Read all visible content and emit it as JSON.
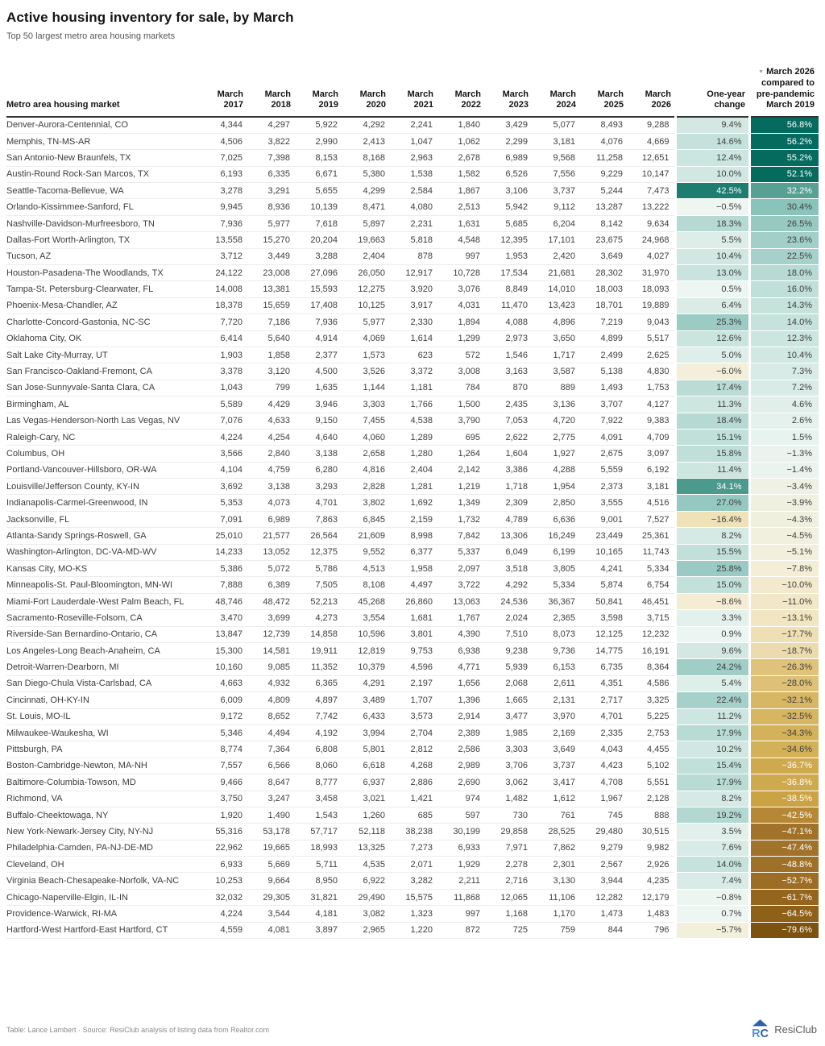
{
  "title": "Active housing inventory for sale, by March",
  "subtitle": "Top 50 largest metro area housing markets",
  "header": {
    "sort_icon": "▼"
  },
  "footer": {
    "credit": "Table: Lance Lambert · Source: ResiClub analysis of listing data from Realtor.com",
    "brand": "ResiClub"
  },
  "colors": {
    "accent_teal_dark": "#066b5f",
    "accent_brown_dark": "#7d5210",
    "light_text": "#ffffff",
    "dark_text": "#3f3f3f",
    "white_text_pos_min": 32,
    "white_text_neg_max": -36,
    "scale_stops": [
      [
        -79.6,
        "#7d5210"
      ],
      [
        -64.5,
        "#8f6118"
      ],
      [
        -61.7,
        "#93651d"
      ],
      [
        -52.7,
        "#9c6e25"
      ],
      [
        -47.1,
        "#a0722a"
      ],
      [
        -42.5,
        "#b68836"
      ],
      [
        -38.5,
        "#cba345"
      ],
      [
        -36.7,
        "#cfa94d"
      ],
      [
        -34.6,
        "#d3b158"
      ],
      [
        -32.5,
        "#d7b662"
      ],
      [
        -28,
        "#dec077"
      ],
      [
        -26.3,
        "#e0c27a"
      ],
      [
        -18.7,
        "#ecdbae"
      ],
      [
        -17.7,
        "#eedfb4"
      ],
      [
        -13.1,
        "#f1e5c2"
      ],
      [
        -11,
        "#f2e7c8"
      ],
      [
        -7.8,
        "#f4eed6"
      ],
      [
        -5.1,
        "#f2f0dc"
      ],
      [
        -3.9,
        "#eff0e0"
      ],
      [
        -1.3,
        "#eaf3ee"
      ],
      [
        0,
        "#f2f8f5"
      ],
      [
        1.5,
        "#e7f3ee"
      ],
      [
        7.3,
        "#d9ebe6"
      ],
      [
        12.3,
        "#cbe5df"
      ],
      [
        16,
        "#bfdfd8"
      ],
      [
        22.5,
        "#a6d1ca"
      ],
      [
        26.5,
        "#97c9c1"
      ],
      [
        30.4,
        "#8ac3ba"
      ],
      [
        32.2,
        "#57a093"
      ],
      [
        42.5,
        "#1d7d6f"
      ],
      [
        52,
        "#066b5f"
      ],
      [
        56.8,
        "#066b5f"
      ]
    ]
  },
  "chart_data": {
    "type": "table",
    "columns": [
      "Metro area housing market",
      "March 2017",
      "March 2018",
      "March 2019",
      "March 2020",
      "March 2021",
      "March 2022",
      "March 2023",
      "March 2024",
      "March 2025",
      "March 2026",
      "One-year change",
      "March 2026 compared to pre-pandemic March 2019"
    ],
    "rows": [
      {
        "metro": "Denver-Aurora-Centennial, CO",
        "values": [
          4344,
          4297,
          5922,
          4292,
          2241,
          1840,
          3429,
          5077,
          8493,
          9288
        ],
        "one_year_change": 9.4,
        "vs_pre_pandemic_2019": 56.8
      },
      {
        "metro": "Memphis, TN-MS-AR",
        "values": [
          4506,
          3822,
          2990,
          2413,
          1047,
          1062,
          2299,
          3181,
          4076,
          4669
        ],
        "one_year_change": 14.6,
        "vs_pre_pandemic_2019": 56.2
      },
      {
        "metro": "San Antonio-New Braunfels, TX",
        "values": [
          7025,
          7398,
          8153,
          8168,
          2963,
          2678,
          6989,
          9568,
          11258,
          12651
        ],
        "one_year_change": 12.4,
        "vs_pre_pandemic_2019": 55.2
      },
      {
        "metro": "Austin-Round Rock-San Marcos, TX",
        "values": [
          6193,
          6335,
          6671,
          5380,
          1538,
          1582,
          6526,
          7556,
          9229,
          10147
        ],
        "one_year_change": 10.0,
        "vs_pre_pandemic_2019": 52.1
      },
      {
        "metro": "Seattle-Tacoma-Bellevue, WA",
        "values": [
          3278,
          3291,
          5655,
          4299,
          2584,
          1867,
          3106,
          3737,
          5244,
          7473
        ],
        "one_year_change": 42.5,
        "vs_pre_pandemic_2019": 32.2
      },
      {
        "metro": "Orlando-Kissimmee-Sanford, FL",
        "values": [
          9945,
          8936,
          10139,
          8471,
          4080,
          2513,
          5942,
          9112,
          13287,
          13222
        ],
        "one_year_change": -0.5,
        "vs_pre_pandemic_2019": 30.4
      },
      {
        "metro": "Nashville-Davidson-Murfreesboro, TN",
        "values": [
          7936,
          5977,
          7618,
          5897,
          2231,
          1631,
          5685,
          6204,
          8142,
          9634
        ],
        "one_year_change": 18.3,
        "vs_pre_pandemic_2019": 26.5
      },
      {
        "metro": "Dallas-Fort Worth-Arlington, TX",
        "values": [
          13558,
          15270,
          20204,
          19663,
          5818,
          4548,
          12395,
          17101,
          23675,
          24968
        ],
        "one_year_change": 5.5,
        "vs_pre_pandemic_2019": 23.6
      },
      {
        "metro": "Tucson, AZ",
        "values": [
          3712,
          3449,
          3288,
          2404,
          878,
          997,
          1953,
          2420,
          3649,
          4027
        ],
        "one_year_change": 10.4,
        "vs_pre_pandemic_2019": 22.5
      },
      {
        "metro": "Houston-Pasadena-The Woodlands, TX",
        "values": [
          24122,
          23008,
          27096,
          26050,
          12917,
          10728,
          17534,
          21681,
          28302,
          31970
        ],
        "one_year_change": 13.0,
        "vs_pre_pandemic_2019": 18.0
      },
      {
        "metro": "Tampa-St. Petersburg-Clearwater, FL",
        "values": [
          14008,
          13381,
          15593,
          12275,
          3920,
          3076,
          8849,
          14010,
          18003,
          18093
        ],
        "one_year_change": 0.5,
        "vs_pre_pandemic_2019": 16.0
      },
      {
        "metro": "Phoenix-Mesa-Chandler, AZ",
        "values": [
          18378,
          15659,
          17408,
          10125,
          3917,
          4031,
          11470,
          13423,
          18701,
          19889
        ],
        "one_year_change": 6.4,
        "vs_pre_pandemic_2019": 14.3
      },
      {
        "metro": "Charlotte-Concord-Gastonia, NC-SC",
        "values": [
          7720,
          7186,
          7936,
          5977,
          2330,
          1894,
          4088,
          4896,
          7219,
          9043
        ],
        "one_year_change": 25.3,
        "vs_pre_pandemic_2019": 14.0
      },
      {
        "metro": "Oklahoma City, OK",
        "values": [
          6414,
          5640,
          4914,
          4069,
          1614,
          1299,
          2973,
          3650,
          4899,
          5517
        ],
        "one_year_change": 12.6,
        "vs_pre_pandemic_2019": 12.3
      },
      {
        "metro": "Salt Lake City-Murray, UT",
        "values": [
          1903,
          1858,
          2377,
          1573,
          623,
          572,
          1546,
          1717,
          2499,
          2625
        ],
        "one_year_change": 5.0,
        "vs_pre_pandemic_2019": 10.4
      },
      {
        "metro": "San Francisco-Oakland-Fremont, CA",
        "values": [
          3378,
          3120,
          4500,
          3526,
          3372,
          3008,
          3163,
          3587,
          5138,
          4830
        ],
        "one_year_change": -6.0,
        "vs_pre_pandemic_2019": 7.3
      },
      {
        "metro": "San Jose-Sunnyvale-Santa Clara, CA",
        "values": [
          1043,
          799,
          1635,
          1144,
          1181,
          784,
          870,
          889,
          1493,
          1753
        ],
        "one_year_change": 17.4,
        "vs_pre_pandemic_2019": 7.2
      },
      {
        "metro": "Birmingham, AL",
        "values": [
          5589,
          4429,
          3946,
          3303,
          1766,
          1500,
          2435,
          3136,
          3707,
          4127
        ],
        "one_year_change": 11.3,
        "vs_pre_pandemic_2019": 4.6
      },
      {
        "metro": "Las Vegas-Henderson-North Las Vegas, NV",
        "values": [
          7076,
          4633,
          9150,
          7455,
          4538,
          3790,
          7053,
          4720,
          7922,
          9383
        ],
        "one_year_change": 18.4,
        "vs_pre_pandemic_2019": 2.6
      },
      {
        "metro": "Raleigh-Cary, NC",
        "values": [
          4224,
          4254,
          4640,
          4060,
          1289,
          695,
          2622,
          2775,
          4091,
          4709
        ],
        "one_year_change": 15.1,
        "vs_pre_pandemic_2019": 1.5
      },
      {
        "metro": "Columbus, OH",
        "values": [
          3566,
          2840,
          3138,
          2658,
          1280,
          1264,
          1604,
          1927,
          2675,
          3097
        ],
        "one_year_change": 15.8,
        "vs_pre_pandemic_2019": -1.3
      },
      {
        "metro": "Portland-Vancouver-Hillsboro, OR-WA",
        "values": [
          4104,
          4759,
          6280,
          4816,
          2404,
          2142,
          3386,
          4288,
          5559,
          6192
        ],
        "one_year_change": 11.4,
        "vs_pre_pandemic_2019": -1.4
      },
      {
        "metro": "Louisville/Jefferson County, KY-IN",
        "values": [
          3692,
          3138,
          3293,
          2828,
          1281,
          1219,
          1718,
          1954,
          2373,
          3181
        ],
        "one_year_change": 34.1,
        "vs_pre_pandemic_2019": -3.4
      },
      {
        "metro": "Indianapolis-Carmel-Greenwood, IN",
        "values": [
          5353,
          4073,
          4701,
          3802,
          1692,
          1349,
          2309,
          2850,
          3555,
          4516
        ],
        "one_year_change": 27.0,
        "vs_pre_pandemic_2019": -3.9
      },
      {
        "metro": "Jacksonville, FL",
        "values": [
          7091,
          6989,
          7863,
          6845,
          2159,
          1732,
          4789,
          6636,
          9001,
          7527
        ],
        "one_year_change": -16.4,
        "vs_pre_pandemic_2019": -4.3
      },
      {
        "metro": "Atlanta-Sandy Springs-Roswell, GA",
        "values": [
          25010,
          21577,
          26564,
          21609,
          8998,
          7842,
          13306,
          16249,
          23449,
          25361
        ],
        "one_year_change": 8.2,
        "vs_pre_pandemic_2019": -4.5
      },
      {
        "metro": "Washington-Arlington, DC-VA-MD-WV",
        "values": [
          14233,
          13052,
          12375,
          9552,
          6377,
          5337,
          6049,
          6199,
          10165,
          11743
        ],
        "one_year_change": 15.5,
        "vs_pre_pandemic_2019": -5.1
      },
      {
        "metro": "Kansas City, MO-KS",
        "values": [
          5386,
          5072,
          5786,
          4513,
          1958,
          2097,
          3518,
          3805,
          4241,
          5334
        ],
        "one_year_change": 25.8,
        "vs_pre_pandemic_2019": -7.8
      },
      {
        "metro": "Minneapolis-St. Paul-Bloomington, MN-WI",
        "values": [
          7888,
          6389,
          7505,
          8108,
          4497,
          3722,
          4292,
          5334,
          5874,
          6754
        ],
        "one_year_change": 15.0,
        "vs_pre_pandemic_2019": -10.0
      },
      {
        "metro": "Miami-Fort Lauderdale-West Palm Beach, FL",
        "values": [
          48746,
          48472,
          52213,
          45268,
          26860,
          13063,
          24536,
          36367,
          50841,
          46451
        ],
        "one_year_change": -8.6,
        "vs_pre_pandemic_2019": -11.0
      },
      {
        "metro": "Sacramento-Roseville-Folsom, CA",
        "values": [
          3470,
          3699,
          4273,
          3554,
          1681,
          1767,
          2024,
          2365,
          3598,
          3715
        ],
        "one_year_change": 3.3,
        "vs_pre_pandemic_2019": -13.1
      },
      {
        "metro": "Riverside-San Bernardino-Ontario, CA",
        "values": [
          13847,
          12739,
          14858,
          10596,
          3801,
          4390,
          7510,
          8073,
          12125,
          12232
        ],
        "one_year_change": 0.9,
        "vs_pre_pandemic_2019": -17.7
      },
      {
        "metro": "Los Angeles-Long Beach-Anaheim, CA",
        "values": [
          15300,
          14581,
          19911,
          12819,
          9753,
          6938,
          9238,
          9736,
          14775,
          16191
        ],
        "one_year_change": 9.6,
        "vs_pre_pandemic_2019": -18.7
      },
      {
        "metro": "Detroit-Warren-Dearborn, MI",
        "values": [
          10160,
          9085,
          11352,
          10379,
          4596,
          4771,
          5939,
          6153,
          6735,
          8364
        ],
        "one_year_change": 24.2,
        "vs_pre_pandemic_2019": -26.3
      },
      {
        "metro": "San Diego-Chula Vista-Carlsbad, CA",
        "values": [
          4663,
          4932,
          6365,
          4291,
          2197,
          1656,
          2068,
          2611,
          4351,
          4586
        ],
        "one_year_change": 5.4,
        "vs_pre_pandemic_2019": -28.0
      },
      {
        "metro": "Cincinnati, OH-KY-IN",
        "values": [
          6009,
          4809,
          4897,
          3489,
          1707,
          1396,
          1665,
          2131,
          2717,
          3325
        ],
        "one_year_change": 22.4,
        "vs_pre_pandemic_2019": -32.1
      },
      {
        "metro": "St. Louis, MO-IL",
        "values": [
          9172,
          8652,
          7742,
          6433,
          3573,
          2914,
          3477,
          3970,
          4701,
          5225
        ],
        "one_year_change": 11.2,
        "vs_pre_pandemic_2019": -32.5
      },
      {
        "metro": "Milwaukee-Waukesha, WI",
        "values": [
          5346,
          4494,
          4192,
          3994,
          2704,
          2389,
          1985,
          2169,
          2335,
          2753
        ],
        "one_year_change": 17.9,
        "vs_pre_pandemic_2019": -34.3
      },
      {
        "metro": "Pittsburgh, PA",
        "values": [
          8774,
          7364,
          6808,
          5801,
          2812,
          2586,
          3303,
          3649,
          4043,
          4455
        ],
        "one_year_change": 10.2,
        "vs_pre_pandemic_2019": -34.6
      },
      {
        "metro": "Boston-Cambridge-Newton, MA-NH",
        "values": [
          7557,
          6566,
          8060,
          6618,
          4268,
          2989,
          3706,
          3737,
          4423,
          5102
        ],
        "one_year_change": 15.4,
        "vs_pre_pandemic_2019": -36.7
      },
      {
        "metro": "Baltimore-Columbia-Towson, MD",
        "values": [
          9466,
          8647,
          8777,
          6937,
          2886,
          2690,
          3062,
          3417,
          4708,
          5551
        ],
        "one_year_change": 17.9,
        "vs_pre_pandemic_2019": -36.8
      },
      {
        "metro": "Richmond, VA",
        "values": [
          3750,
          3247,
          3458,
          3021,
          1421,
          974,
          1482,
          1612,
          1967,
          2128
        ],
        "one_year_change": 8.2,
        "vs_pre_pandemic_2019": -38.5
      },
      {
        "metro": "Buffalo-Cheektowaga, NY",
        "values": [
          1920,
          1490,
          1543,
          1260,
          685,
          597,
          730,
          761,
          745,
          888
        ],
        "one_year_change": 19.2,
        "vs_pre_pandemic_2019": -42.5
      },
      {
        "metro": "New York-Newark-Jersey City, NY-NJ",
        "values": [
          55316,
          53178,
          57717,
          52118,
          38238,
          30199,
          29858,
          28525,
          29480,
          30515
        ],
        "one_year_change": 3.5,
        "vs_pre_pandemic_2019": -47.1
      },
      {
        "metro": "Philadelphia-Camden, PA-NJ-DE-MD",
        "values": [
          22962,
          19665,
          18993,
          13325,
          7273,
          6933,
          7971,
          7862,
          9279,
          9982
        ],
        "one_year_change": 7.6,
        "vs_pre_pandemic_2019": -47.4
      },
      {
        "metro": "Cleveland, OH",
        "values": [
          6933,
          5669,
          5711,
          4535,
          2071,
          1929,
          2278,
          2301,
          2567,
          2926
        ],
        "one_year_change": 14.0,
        "vs_pre_pandemic_2019": -48.8
      },
      {
        "metro": "Virginia Beach-Chesapeake-Norfolk, VA-NC",
        "values": [
          10253,
          9664,
          8950,
          6922,
          3282,
          2211,
          2716,
          3130,
          3944,
          4235
        ],
        "one_year_change": 7.4,
        "vs_pre_pandemic_2019": -52.7
      },
      {
        "metro": "Chicago-Naperville-Elgin, IL-IN",
        "values": [
          32032,
          29305,
          31821,
          29490,
          15575,
          11868,
          12065,
          11106,
          12282,
          12179
        ],
        "one_year_change": -0.8,
        "vs_pre_pandemic_2019": -61.7
      },
      {
        "metro": "Providence-Warwick, RI-MA",
        "values": [
          4224,
          3544,
          4181,
          3082,
          1323,
          997,
          1168,
          1170,
          1473,
          1483
        ],
        "one_year_change": 0.7,
        "vs_pre_pandemic_2019": -64.5
      },
      {
        "metro": "Hartford-West Hartford-East Hartford, CT",
        "values": [
          4559,
          4081,
          3897,
          2965,
          1220,
          872,
          725,
          759,
          844,
          796
        ],
        "one_year_change": -5.7,
        "vs_pre_pandemic_2019": -79.6
      }
    ]
  }
}
